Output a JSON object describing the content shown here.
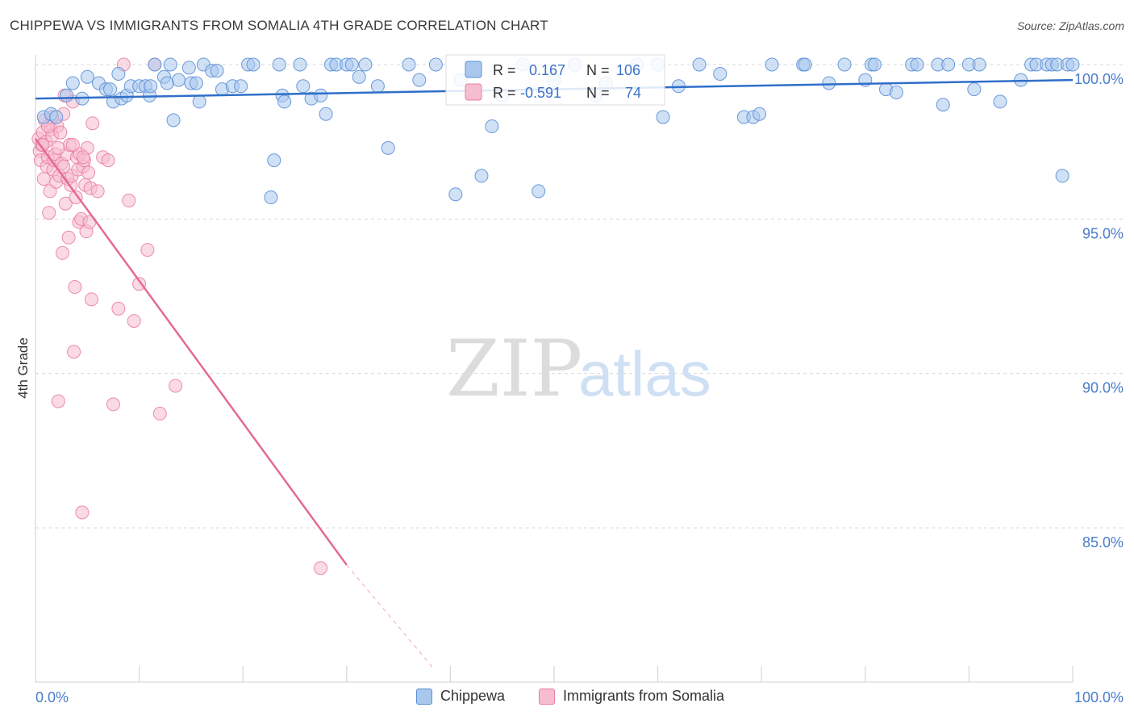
{
  "header": {
    "title": "CHIPPEWA VS IMMIGRANTS FROM SOMALIA 4TH GRADE CORRELATION CHART",
    "source": "Source: ZipAtlas.com"
  },
  "watermark": {
    "zip": "ZIP",
    "atlas": "atlas"
  },
  "colors": {
    "blue_fill": "#aac8ee",
    "blue_stroke": "#5b8fd6",
    "blue_line": "#2f6fc9",
    "pink_fill": "#f6bcd0",
    "pink_stroke": "#ea7fa3",
    "pink_line": "#e46a95",
    "axis_text": "#4a7cc9",
    "grid": "#d8d8d8"
  },
  "legend": {
    "rows": [
      {
        "r_label": "R =",
        "r_value": "0.167",
        "n_label": "N =",
        "n_value": "106"
      },
      {
        "r_label": "R =",
        "r_value": "-0.591",
        "n_label": "N =",
        "n_value": "74"
      }
    ]
  },
  "bottom_legend": {
    "series1": "Chippewa",
    "series2": "Immigrants from Somalia"
  },
  "chart_data": {
    "type": "scatter",
    "title": "CHIPPEWA VS IMMIGRANTS FROM SOMALIA 4TH GRADE CORRELATION CHART",
    "xlabel": "",
    "ylabel": "4th Grade",
    "xlim": [
      0,
      100
    ],
    "ylim": [
      80.4,
      100.6
    ],
    "x_tick_labels": {
      "min": "0.0%",
      "max": "100.0%"
    },
    "y_ticks": [
      100,
      95,
      90,
      85
    ],
    "y_tick_labels": [
      "100.0%",
      "95.0%",
      "90.0%",
      "85.0%"
    ],
    "series": [
      {
        "name": "Chippewa",
        "r": 0.167,
        "n": 106,
        "trend": {
          "x": [
            0,
            100
          ],
          "y": [
            98.9,
            99.5
          ]
        },
        "points": [
          [
            0.8,
            98.3
          ],
          [
            1.5,
            98.4
          ],
          [
            2.0,
            98.3
          ],
          [
            3.0,
            99.0
          ],
          [
            3.6,
            99.4
          ],
          [
            4.5,
            98.9
          ],
          [
            5.0,
            99.6
          ],
          [
            6.1,
            99.4
          ],
          [
            6.8,
            99.2
          ],
          [
            7.2,
            99.2
          ],
          [
            7.5,
            98.8
          ],
          [
            8.0,
            99.7
          ],
          [
            8.3,
            98.9
          ],
          [
            8.8,
            99.0
          ],
          [
            9.2,
            99.3
          ],
          [
            10.0,
            99.3
          ],
          [
            10.6,
            99.3
          ],
          [
            11.0,
            99.0
          ],
          [
            11.1,
            99.3
          ],
          [
            11.5,
            100.0
          ],
          [
            12.4,
            99.6
          ],
          [
            12.7,
            99.4
          ],
          [
            13.0,
            100.0
          ],
          [
            13.3,
            98.2
          ],
          [
            13.8,
            99.5
          ],
          [
            14.8,
            99.9
          ],
          [
            15.0,
            99.4
          ],
          [
            15.5,
            99.4
          ],
          [
            15.8,
            98.8
          ],
          [
            16.2,
            100.0
          ],
          [
            17.0,
            99.8
          ],
          [
            17.5,
            99.8
          ],
          [
            18.0,
            99.2
          ],
          [
            19.0,
            99.3
          ],
          [
            19.8,
            99.3
          ],
          [
            20.5,
            100.0
          ],
          [
            21.0,
            100.0
          ],
          [
            22.7,
            95.7
          ],
          [
            23.0,
            96.9
          ],
          [
            23.5,
            100.0
          ],
          [
            23.8,
            99.0
          ],
          [
            24.0,
            98.8
          ],
          [
            25.5,
            100.0
          ],
          [
            25.8,
            99.3
          ],
          [
            26.6,
            98.9
          ],
          [
            27.5,
            99.0
          ],
          [
            28.0,
            98.4
          ],
          [
            28.5,
            100.0
          ],
          [
            29.0,
            100.0
          ],
          [
            30.0,
            100.0
          ],
          [
            30.5,
            100.0
          ],
          [
            31.2,
            99.6
          ],
          [
            31.8,
            100.0
          ],
          [
            33.0,
            99.3
          ],
          [
            34.0,
            97.3
          ],
          [
            36.0,
            100.0
          ],
          [
            37.0,
            99.5
          ],
          [
            38.6,
            100.0
          ],
          [
            40.5,
            95.8
          ],
          [
            41.0,
            99.5
          ],
          [
            43.0,
            96.4
          ],
          [
            44.0,
            98.0
          ],
          [
            45.0,
            99.0
          ],
          [
            47.0,
            100.0
          ],
          [
            48.5,
            95.9
          ],
          [
            50.0,
            99.5
          ],
          [
            52.0,
            100.0
          ],
          [
            54.0,
            99.0
          ],
          [
            55.0,
            99.4
          ],
          [
            58.0,
            100.0
          ],
          [
            60.0,
            100.0
          ],
          [
            60.5,
            98.3
          ],
          [
            62.0,
            99.3
          ],
          [
            64.0,
            100.0
          ],
          [
            66.0,
            99.7
          ],
          [
            68.3,
            98.3
          ],
          [
            69.2,
            98.3
          ],
          [
            69.8,
            98.4
          ],
          [
            71.0,
            100.0
          ],
          [
            74.0,
            100.0
          ],
          [
            74.2,
            100.0
          ],
          [
            76.5,
            99.4
          ],
          [
            78.0,
            100.0
          ],
          [
            80.0,
            99.5
          ],
          [
            80.6,
            100.0
          ],
          [
            80.9,
            100.0
          ],
          [
            82.0,
            99.2
          ],
          [
            83.0,
            99.1
          ],
          [
            84.5,
            100.0
          ],
          [
            85.0,
            100.0
          ],
          [
            87.0,
            100.0
          ],
          [
            87.5,
            98.7
          ],
          [
            88.0,
            100.0
          ],
          [
            90.0,
            100.0
          ],
          [
            90.5,
            99.2
          ],
          [
            91.0,
            100.0
          ],
          [
            93.0,
            98.8
          ],
          [
            95.0,
            99.5
          ],
          [
            96.0,
            100.0
          ],
          [
            96.5,
            100.0
          ],
          [
            97.5,
            100.0
          ],
          [
            98.0,
            100.0
          ],
          [
            98.5,
            100.0
          ],
          [
            99.0,
            96.4
          ],
          [
            99.5,
            100.0
          ],
          [
            100.0,
            100.0
          ]
        ]
      },
      {
        "name": "Immigrants from Somalia",
        "r": -0.591,
        "n": 74,
        "trend": {
          "x": [
            0,
            30
          ],
          "y": [
            97.6,
            83.8
          ]
        },
        "trend_dashed": {
          "x": [
            30,
            38.5
          ],
          "y": [
            83.8,
            80.4
          ]
        },
        "points": [
          [
            0.3,
            97.6
          ],
          [
            0.4,
            97.2
          ],
          [
            0.5,
            96.9
          ],
          [
            0.6,
            97.4
          ],
          [
            0.7,
            97.8
          ],
          [
            0.8,
            96.3
          ],
          [
            0.9,
            98.2
          ],
          [
            1.0,
            97.5
          ],
          [
            1.1,
            96.7
          ],
          [
            1.2,
            97.0
          ],
          [
            1.3,
            95.2
          ],
          [
            1.4,
            95.9
          ],
          [
            1.5,
            97.9
          ],
          [
            1.6,
            97.7
          ],
          [
            1.7,
            96.6
          ],
          [
            1.8,
            96.9
          ],
          [
            1.9,
            97.1
          ],
          [
            2.0,
            96.2
          ],
          [
            2.1,
            98.0
          ],
          [
            2.2,
            89.1
          ],
          [
            2.3,
            96.4
          ],
          [
            2.4,
            97.8
          ],
          [
            2.5,
            96.8
          ],
          [
            2.6,
            93.9
          ],
          [
            2.7,
            98.4
          ],
          [
            2.8,
            99.0
          ],
          [
            2.9,
            95.5
          ],
          [
            3.0,
            97.1
          ],
          [
            3.1,
            96.3
          ],
          [
            3.2,
            94.4
          ],
          [
            3.3,
            97.4
          ],
          [
            3.4,
            96.1
          ],
          [
            3.5,
            96.4
          ],
          [
            3.6,
            98.8
          ],
          [
            3.7,
            90.7
          ],
          [
            3.8,
            92.8
          ],
          [
            3.9,
            95.7
          ],
          [
            4.0,
            97.0
          ],
          [
            4.1,
            96.6
          ],
          [
            4.2,
            94.9
          ],
          [
            4.3,
            97.1
          ],
          [
            4.4,
            95.0
          ],
          [
            4.5,
            85.5
          ],
          [
            4.6,
            96.7
          ],
          [
            4.7,
            96.9
          ],
          [
            4.8,
            96.1
          ],
          [
            4.9,
            94.6
          ],
          [
            5.0,
            97.3
          ],
          [
            5.1,
            96.5
          ],
          [
            5.2,
            94.9
          ],
          [
            5.3,
            96.0
          ],
          [
            5.4,
            92.4
          ],
          [
            5.5,
            98.1
          ],
          [
            6.0,
            95.9
          ],
          [
            6.5,
            97.0
          ],
          [
            7.0,
            96.9
          ],
          [
            7.5,
            89.0
          ],
          [
            8.0,
            92.1
          ],
          [
            8.5,
            100.0
          ],
          [
            9.0,
            95.6
          ],
          [
            9.5,
            91.7
          ],
          [
            10.0,
            92.9
          ],
          [
            10.8,
            94.0
          ],
          [
            11.5,
            100.0
          ],
          [
            12.0,
            88.7
          ],
          [
            13.5,
            89.6
          ],
          [
            27.5,
            83.7
          ],
          [
            1.6,
            98.3
          ],
          [
            2.2,
            97.3
          ],
          [
            3.6,
            97.4
          ],
          [
            0.7,
            97.4
          ],
          [
            4.6,
            97.0
          ],
          [
            2.7,
            96.7
          ],
          [
            1.2,
            98.0
          ]
        ]
      }
    ]
  }
}
